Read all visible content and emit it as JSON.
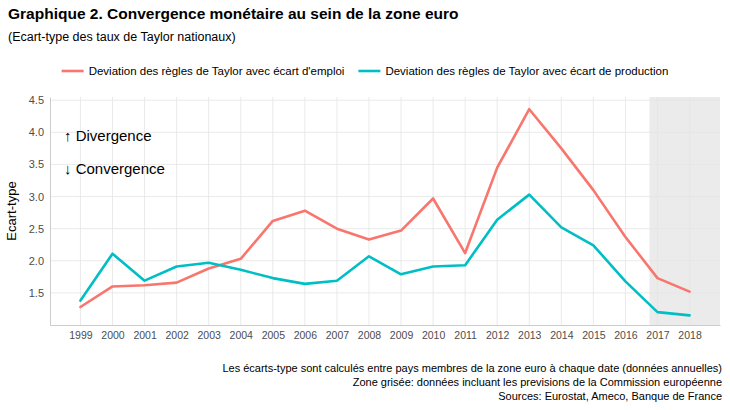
{
  "chart_data": {
    "type": "line",
    "title": "Graphique 2. Convergence monétaire au sein de la zone euro",
    "subtitle": "(Ecart-type des taux de Taylor nationaux)",
    "y_label": "Ecart-type",
    "x": [
      1999,
      2000,
      2001,
      2002,
      2003,
      2004,
      2005,
      2006,
      2007,
      2008,
      2009,
      2010,
      2011,
      2012,
      2013,
      2014,
      2015,
      2016,
      2017,
      2018
    ],
    "series": [
      {
        "name": "Deviation des règles de Taylor avec écart d'emploi",
        "color": "#F8766D",
        "values": [
          1.28,
          1.6,
          1.62,
          1.66,
          1.88,
          2.03,
          2.62,
          2.78,
          2.5,
          2.33,
          2.47,
          2.97,
          2.12,
          3.45,
          4.36,
          3.75,
          3.1,
          2.37,
          1.73,
          1.52
        ]
      },
      {
        "name": "Deviation des règles de Taylor avec écart de production",
        "color": "#00BFC4",
        "values": [
          1.38,
          2.11,
          1.69,
          1.91,
          1.97,
          1.86,
          1.73,
          1.64,
          1.69,
          2.07,
          1.79,
          1.91,
          1.93,
          2.64,
          3.03,
          2.52,
          2.24,
          1.68,
          1.2,
          1.15
        ]
      }
    ],
    "xlim": [
      1998.05,
      2018.95
    ],
    "xticks": [
      1999,
      2000,
      2001,
      2002,
      2003,
      2004,
      2005,
      2006,
      2007,
      2008,
      2009,
      2010,
      2011,
      2012,
      2013,
      2014,
      2015,
      2016,
      2017,
      2018
    ],
    "ylim": [
      1.0,
      4.55
    ],
    "yticks": [
      1.5,
      {
        "value": 2,
        "label": "2.0"
      },
      2.5,
      {
        "value": 3,
        "label": "3.0"
      },
      3.5,
      {
        "value": 4,
        "label": "4.0"
      },
      4.5
    ],
    "grid": true,
    "legend": "top",
    "shaded_x": [
      2016.75,
      2018.95
    ],
    "annotations": [
      "↑ Divergence",
      "↓ Convergence"
    ],
    "notes": [
      "Les écarts-type sont calculés entre pays membres de la zone euro à chaque date (données annuelles)",
      "Zone grisée: données incluant les previsions de la Commission européenne",
      "Sources: Eurostat, Ameco, Banque de France"
    ]
  }
}
